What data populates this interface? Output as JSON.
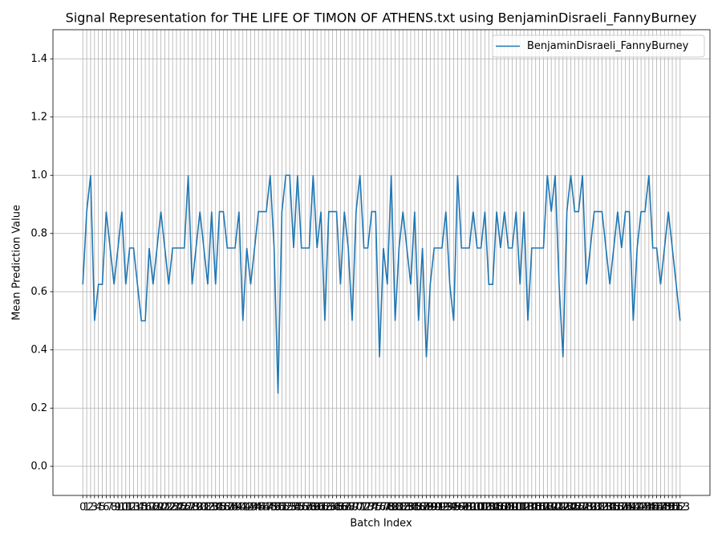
{
  "chart_data": {
    "type": "line",
    "title": "Signal Representation for THE LIFE OF TIMON OF ATHENS.txt using BenjaminDisraeli_FannyBurney",
    "x_label": "Batch Index",
    "y_label": "Mean Prediction Value",
    "x": [
      0,
      1,
      2,
      3,
      4,
      5,
      6,
      7,
      8,
      9,
      10,
      11,
      12,
      13,
      14,
      15,
      16,
      17,
      18,
      19,
      20,
      21,
      22,
      23,
      24,
      25,
      26,
      27,
      28,
      29,
      30,
      31,
      32,
      33,
      34,
      35,
      36,
      37,
      38,
      39,
      40,
      41,
      42,
      43,
      44,
      45,
      46,
      47,
      48,
      49,
      50,
      51,
      52,
      53,
      54,
      55,
      56,
      57,
      58,
      59,
      60,
      61,
      62,
      63,
      64,
      65,
      66,
      67,
      68,
      69,
      70,
      71,
      72,
      73,
      74,
      75,
      76,
      77,
      78,
      79,
      80,
      81,
      82,
      83,
      84,
      85,
      86,
      87,
      88,
      89,
      90,
      91,
      92,
      93,
      94,
      95,
      96,
      97,
      98,
      99,
      100,
      101,
      102,
      103,
      104,
      105,
      106,
      107,
      108,
      109,
      110,
      111,
      112,
      113,
      114,
      115,
      116,
      117,
      118,
      119,
      120,
      121,
      122,
      123,
      124,
      125,
      126,
      127,
      128,
      129,
      130,
      131,
      132,
      133,
      134,
      135,
      136,
      137,
      138,
      139,
      140,
      141,
      142,
      143,
      144,
      145,
      146,
      147,
      148,
      149,
      150,
      151,
      152,
      153
    ],
    "series": [
      {
        "name": "BenjaminDisraeli_FannyBurney",
        "color": "#1f77b4",
        "values": [
          0.625,
          0.875,
          1.0,
          0.5,
          0.625,
          0.625,
          0.875,
          0.75,
          0.625,
          0.75,
          0.875,
          0.625,
          0.75,
          0.75,
          0.625,
          0.5,
          0.5,
          0.75,
          0.625,
          0.75,
          0.875,
          0.75,
          0.625,
          0.75,
          0.75,
          0.75,
          0.75,
          1.0,
          0.625,
          0.75,
          0.875,
          0.75,
          0.625,
          0.875,
          0.625,
          0.875,
          0.875,
          0.75,
          0.75,
          0.75,
          0.875,
          0.5,
          0.75,
          0.625,
          0.75,
          0.875,
          0.875,
          0.875,
          1.0,
          0.75,
          0.25,
          0.875,
          1.0,
          1.0,
          0.75,
          1.0,
          0.75,
          0.75,
          0.75,
          1.0,
          0.75,
          0.875,
          0.5,
          0.875,
          0.875,
          0.875,
          0.625,
          0.875,
          0.75,
          0.5,
          0.875,
          1.0,
          0.75,
          0.75,
          0.875,
          0.875,
          0.375,
          0.75,
          0.625,
          1.0,
          0.5,
          0.75,
          0.875,
          0.75,
          0.625,
          0.875,
          0.5,
          0.75,
          0.375,
          0.625,
          0.75,
          0.75,
          0.75,
          0.875,
          0.625,
          0.5,
          1.0,
          0.75,
          0.75,
          0.75,
          0.875,
          0.75,
          0.75,
          0.875,
          0.625,
          0.625,
          0.875,
          0.75,
          0.875,
          0.75,
          0.75,
          0.875,
          0.625,
          0.875,
          0.5,
          0.75,
          0.75,
          0.75,
          0.75,
          1.0,
          0.875,
          1.0,
          0.625,
          0.375,
          0.875,
          1.0,
          0.875,
          0.875,
          1.0,
          0.625,
          0.75,
          0.875,
          0.875,
          0.875,
          0.75,
          0.625,
          0.75,
          0.875,
          0.75,
          0.875,
          0.875,
          0.5,
          0.75,
          0.875,
          0.875,
          1.0,
          0.75,
          0.75,
          0.625,
          0.75,
          0.875,
          0.75,
          0.625,
          0.5
        ]
      }
    ],
    "xlim": [
      -7.65,
      160.65
    ],
    "xticks": [
      0,
      1,
      2,
      3,
      4,
      5,
      6,
      7,
      8,
      9,
      10,
      11,
      12,
      13,
      14,
      15,
      16,
      17,
      18,
      19,
      20,
      21,
      22,
      23,
      24,
      25,
      26,
      27,
      28,
      29,
      30,
      31,
      32,
      33,
      34,
      35,
      36,
      37,
      38,
      39,
      40,
      41,
      42,
      43,
      44,
      45,
      46,
      47,
      48,
      49,
      50,
      51,
      52,
      53,
      54,
      55,
      56,
      57,
      58,
      59,
      60,
      61,
      62,
      63,
      64,
      65,
      66,
      67,
      68,
      69,
      70,
      71,
      72,
      73,
      74,
      75,
      76,
      77,
      78,
      79,
      80,
      81,
      82,
      83,
      84,
      85,
      86,
      87,
      88,
      89,
      90,
      91,
      92,
      93,
      94,
      95,
      96,
      97,
      98,
      99,
      100,
      101,
      102,
      103,
      104,
      105,
      106,
      107,
      108,
      109,
      110,
      111,
      112,
      113,
      114,
      115,
      116,
      117,
      118,
      119,
      120,
      121,
      122,
      123,
      124,
      125,
      126,
      127,
      128,
      129,
      130,
      131,
      132,
      133,
      134,
      135,
      136,
      137,
      138,
      139,
      140,
      141,
      142,
      143,
      144,
      145,
      146,
      147,
      148,
      149,
      150,
      151,
      152,
      153
    ],
    "ylim": [
      -0.1,
      1.5
    ],
    "yticks": [
      {
        "value": 0,
        "label": "0.0"
      },
      0.2,
      0.4,
      0.6,
      0.8,
      {
        "value": 1,
        "label": "1.0"
      },
      1.2,
      1.4
    ],
    "grid": true,
    "legend": "upper right"
  }
}
